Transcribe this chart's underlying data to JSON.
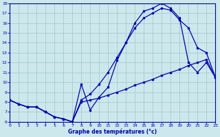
{
  "title": "Graphe des températures (°c)",
  "bg_color": "#cce8ec",
  "grid_color": "#a8c8d0",
  "line_color": "#0000aa",
  "xlim": [
    0,
    23
  ],
  "ylim": [
    6,
    18
  ],
  "xticks": [
    0,
    1,
    2,
    3,
    4,
    5,
    6,
    7,
    8,
    9,
    10,
    11,
    12,
    13,
    14,
    15,
    16,
    17,
    18,
    19,
    20,
    21,
    22,
    23
  ],
  "yticks": [
    6,
    7,
    8,
    9,
    10,
    11,
    12,
    13,
    14,
    15,
    16,
    17,
    18
  ],
  "curve1_x": [
    0,
    1,
    2,
    3,
    4,
    5,
    6,
    7,
    8,
    9,
    10,
    11,
    12,
    13,
    14,
    15,
    16,
    17,
    18,
    19,
    20,
    21,
    22,
    23
  ],
  "curve1_y": [
    8.2,
    7.8,
    7.5,
    7.5,
    7.0,
    6.5,
    6.3,
    6.0,
    9.8,
    7.2,
    8.5,
    9.5,
    12.2,
    14.0,
    16.0,
    17.2,
    17.5,
    18.0,
    17.5,
    16.5,
    12.0,
    11.0,
    12.0,
    10.5
  ],
  "curve2_x": [
    0,
    1,
    2,
    3,
    4,
    5,
    6,
    7,
    8,
    9,
    10,
    11,
    12,
    13,
    14,
    15,
    16,
    17,
    18,
    19,
    20,
    21,
    22,
    23
  ],
  "curve2_y": [
    8.2,
    7.8,
    7.5,
    7.5,
    7.0,
    6.5,
    6.3,
    6.0,
    8.2,
    8.8,
    9.8,
    11.0,
    12.5,
    14.0,
    15.5,
    16.5,
    17.0,
    17.5,
    17.3,
    16.3,
    15.5,
    13.5,
    13.0,
    10.5
  ],
  "curve3_x": [
    0,
    1,
    2,
    3,
    4,
    5,
    6,
    7,
    8,
    9,
    10,
    11,
    12,
    13,
    14,
    15,
    16,
    17,
    18,
    19,
    20,
    21,
    22,
    23
  ],
  "curve3_y": [
    8.2,
    7.8,
    7.5,
    7.5,
    7.0,
    6.5,
    6.3,
    6.0,
    8.0,
    8.2,
    8.4,
    8.7,
    9.0,
    9.3,
    9.7,
    10.0,
    10.3,
    10.7,
    11.0,
    11.3,
    11.7,
    12.0,
    12.3,
    10.5
  ]
}
